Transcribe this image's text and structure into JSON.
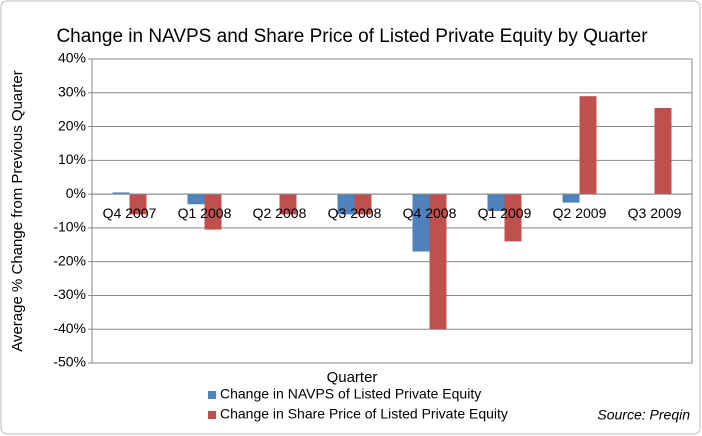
{
  "chart_data": {
    "type": "bar",
    "title": "Change in NAVPS and Share Price of Listed Private Equity by Quarter",
    "x_label": "Quarter",
    "y_label": "Average % Change from Previous Quarter",
    "source": "Source: Preqin",
    "categories": [
      "Q4 2007",
      "Q1 2008",
      "Q2 2008",
      "Q3 2008",
      "Q4 2008",
      "Q1 2009",
      "Q2 2009",
      "Q3 2009"
    ],
    "series": [
      {
        "name": "Change in NAVPS of Listed Private Equity",
        "color": "#4f81bd",
        "values": [
          0.5,
          -3,
          0,
          -6,
          -17,
          -5,
          -2.5,
          0
        ]
      },
      {
        "name": "Change in Share Price of Listed Private Equity",
        "color": "#c0504d",
        "values": [
          -6,
          -10.5,
          -6,
          -6,
          -40,
          -14,
          29,
          25.5
        ]
      }
    ],
    "ylim": [
      -50,
      40
    ],
    "yticks": [
      {
        "value": -50,
        "label": "-50%"
      },
      {
        "value": -40,
        "label": "-40%"
      },
      {
        "value": -30,
        "label": "-30%"
      },
      {
        "value": -20,
        "label": "-20%"
      },
      {
        "value": -10,
        "label": "-10%"
      },
      {
        "value": 0,
        "label": "0%"
      },
      {
        "value": 10,
        "label": "10%"
      },
      {
        "value": 20,
        "label": "20%"
      },
      {
        "value": 30,
        "label": "30%"
      },
      {
        "value": 40,
        "label": "40%"
      }
    ],
    "grid": true,
    "legend": "bottom"
  }
}
